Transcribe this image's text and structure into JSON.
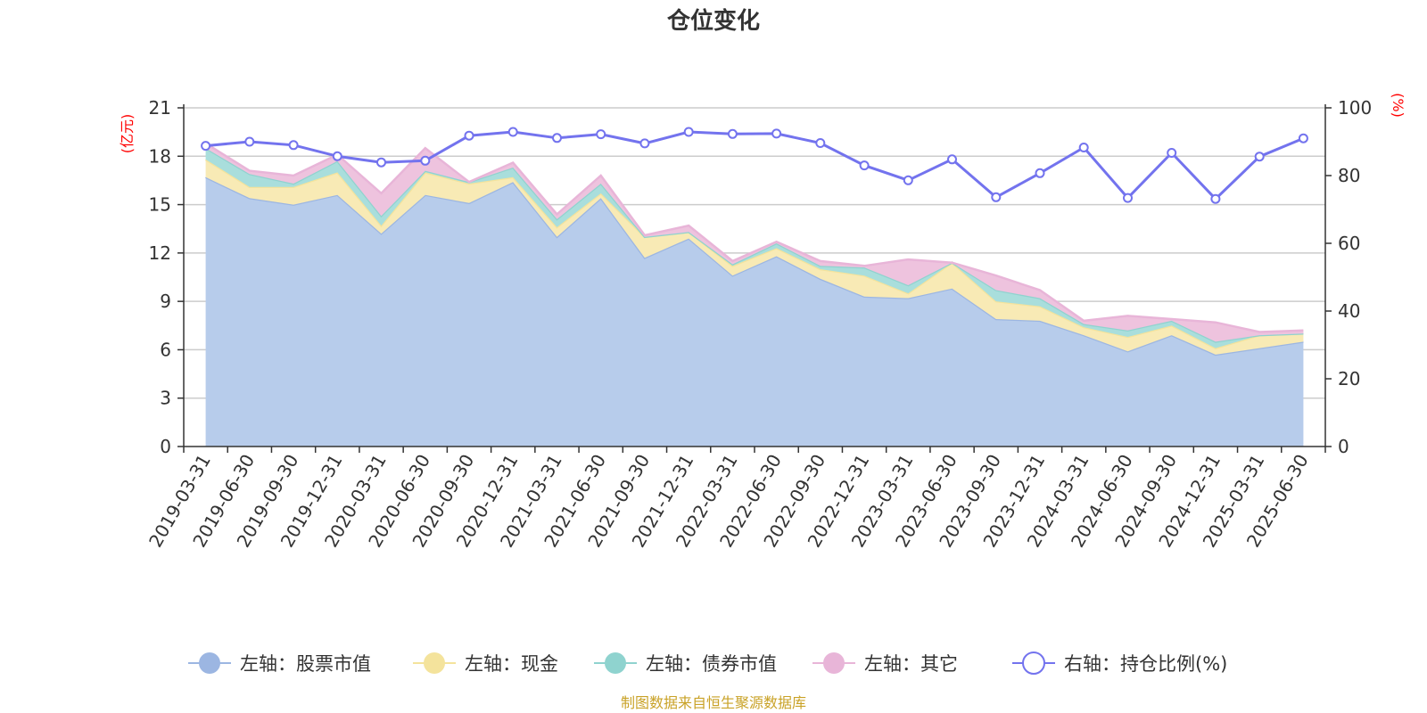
{
  "chart_data": {
    "type": "area",
    "title": "仓位变化",
    "left_unit": "(亿元)",
    "right_unit": "(%)",
    "source": "制图数据来自恒生聚源数据库",
    "x": [
      "2019-03-31",
      "2019-06-30",
      "2019-09-30",
      "2019-12-31",
      "2020-03-31",
      "2020-06-30",
      "2020-09-30",
      "2020-12-31",
      "2021-03-31",
      "2021-06-30",
      "2021-09-30",
      "2021-12-31",
      "2022-03-31",
      "2022-06-30",
      "2022-09-30",
      "2022-12-31",
      "2023-03-31",
      "2023-06-30",
      "2023-09-30",
      "2023-12-31",
      "2024-03-31",
      "2024-06-30",
      "2024-09-30",
      "2024-12-31",
      "2025-03-31",
      "2025-06-30"
    ],
    "left_axis": {
      "min": 0,
      "max": 21,
      "ticks": [
        "0",
        "3",
        "6",
        "9",
        "12",
        "15",
        "18",
        "21"
      ]
    },
    "right_axis": {
      "min": 0,
      "max": 100,
      "ticks": [
        "0",
        "20",
        "40",
        "60",
        "80",
        "100"
      ]
    },
    "grid": true,
    "legend_position": "bottom",
    "series": [
      {
        "name": "左轴：股票市值",
        "axis": "left",
        "color": "#9cb6e2",
        "fill": "#b7cceb",
        "values": [
          16.7,
          15.4,
          15.0,
          15.6,
          13.2,
          15.6,
          15.1,
          16.4,
          13.0,
          15.4,
          11.7,
          12.9,
          10.6,
          11.8,
          10.4,
          9.3,
          9.2,
          9.8,
          7.9,
          7.8,
          6.9,
          5.9,
          6.9,
          5.7,
          6.1,
          6.5
        ]
      },
      {
        "name": "左轴：现金",
        "axis": "left",
        "color": "#f4e39c",
        "fill": "#f8eab5",
        "values": [
          1.1,
          0.7,
          1.1,
          1.4,
          0.5,
          1.4,
          1.2,
          0.3,
          0.6,
          0.3,
          1.3,
          0.4,
          0.6,
          0.5,
          0.6,
          1.3,
          0.3,
          1.6,
          1.1,
          0.9,
          0.5,
          0.9,
          0.6,
          0.4,
          0.8,
          0.5
        ]
      },
      {
        "name": "左轴：债券市值",
        "axis": "left",
        "color": "#8fd3cf",
        "fill": "#a9dedc",
        "values": [
          0.7,
          0.8,
          0.2,
          0.7,
          0.6,
          0.1,
          0.1,
          0.6,
          0.5,
          0.6,
          0.0,
          0.0,
          0.1,
          0.3,
          0.2,
          0.5,
          0.5,
          0.0,
          0.7,
          0.5,
          0.2,
          0.4,
          0.3,
          0.4,
          0.0,
          0.0
        ]
      },
      {
        "name": "左轴：其它",
        "axis": "left",
        "color": "#e8b5d8",
        "fill": "#eec3de",
        "values": [
          0.3,
          0.2,
          0.5,
          0.4,
          1.4,
          1.4,
          0.0,
          0.3,
          0.3,
          0.5,
          0.1,
          0.4,
          0.2,
          0.1,
          0.3,
          0.1,
          1.6,
          0.0,
          0.9,
          0.5,
          0.2,
          0.9,
          0.1,
          1.2,
          0.2,
          0.2
        ]
      },
      {
        "name": "右轴：持仓比例(%)",
        "axis": "right",
        "color": "#7373ee",
        "type": "line",
        "values": [
          88.8,
          90.0,
          89.0,
          85.7,
          83.9,
          84.4,
          91.8,
          92.9,
          91.1,
          92.2,
          89.5,
          92.9,
          92.3,
          92.4,
          89.6,
          83.0,
          78.6,
          84.8,
          73.6,
          80.7,
          88.3,
          73.4,
          86.7,
          73.1,
          85.6,
          91.0
        ]
      }
    ]
  }
}
